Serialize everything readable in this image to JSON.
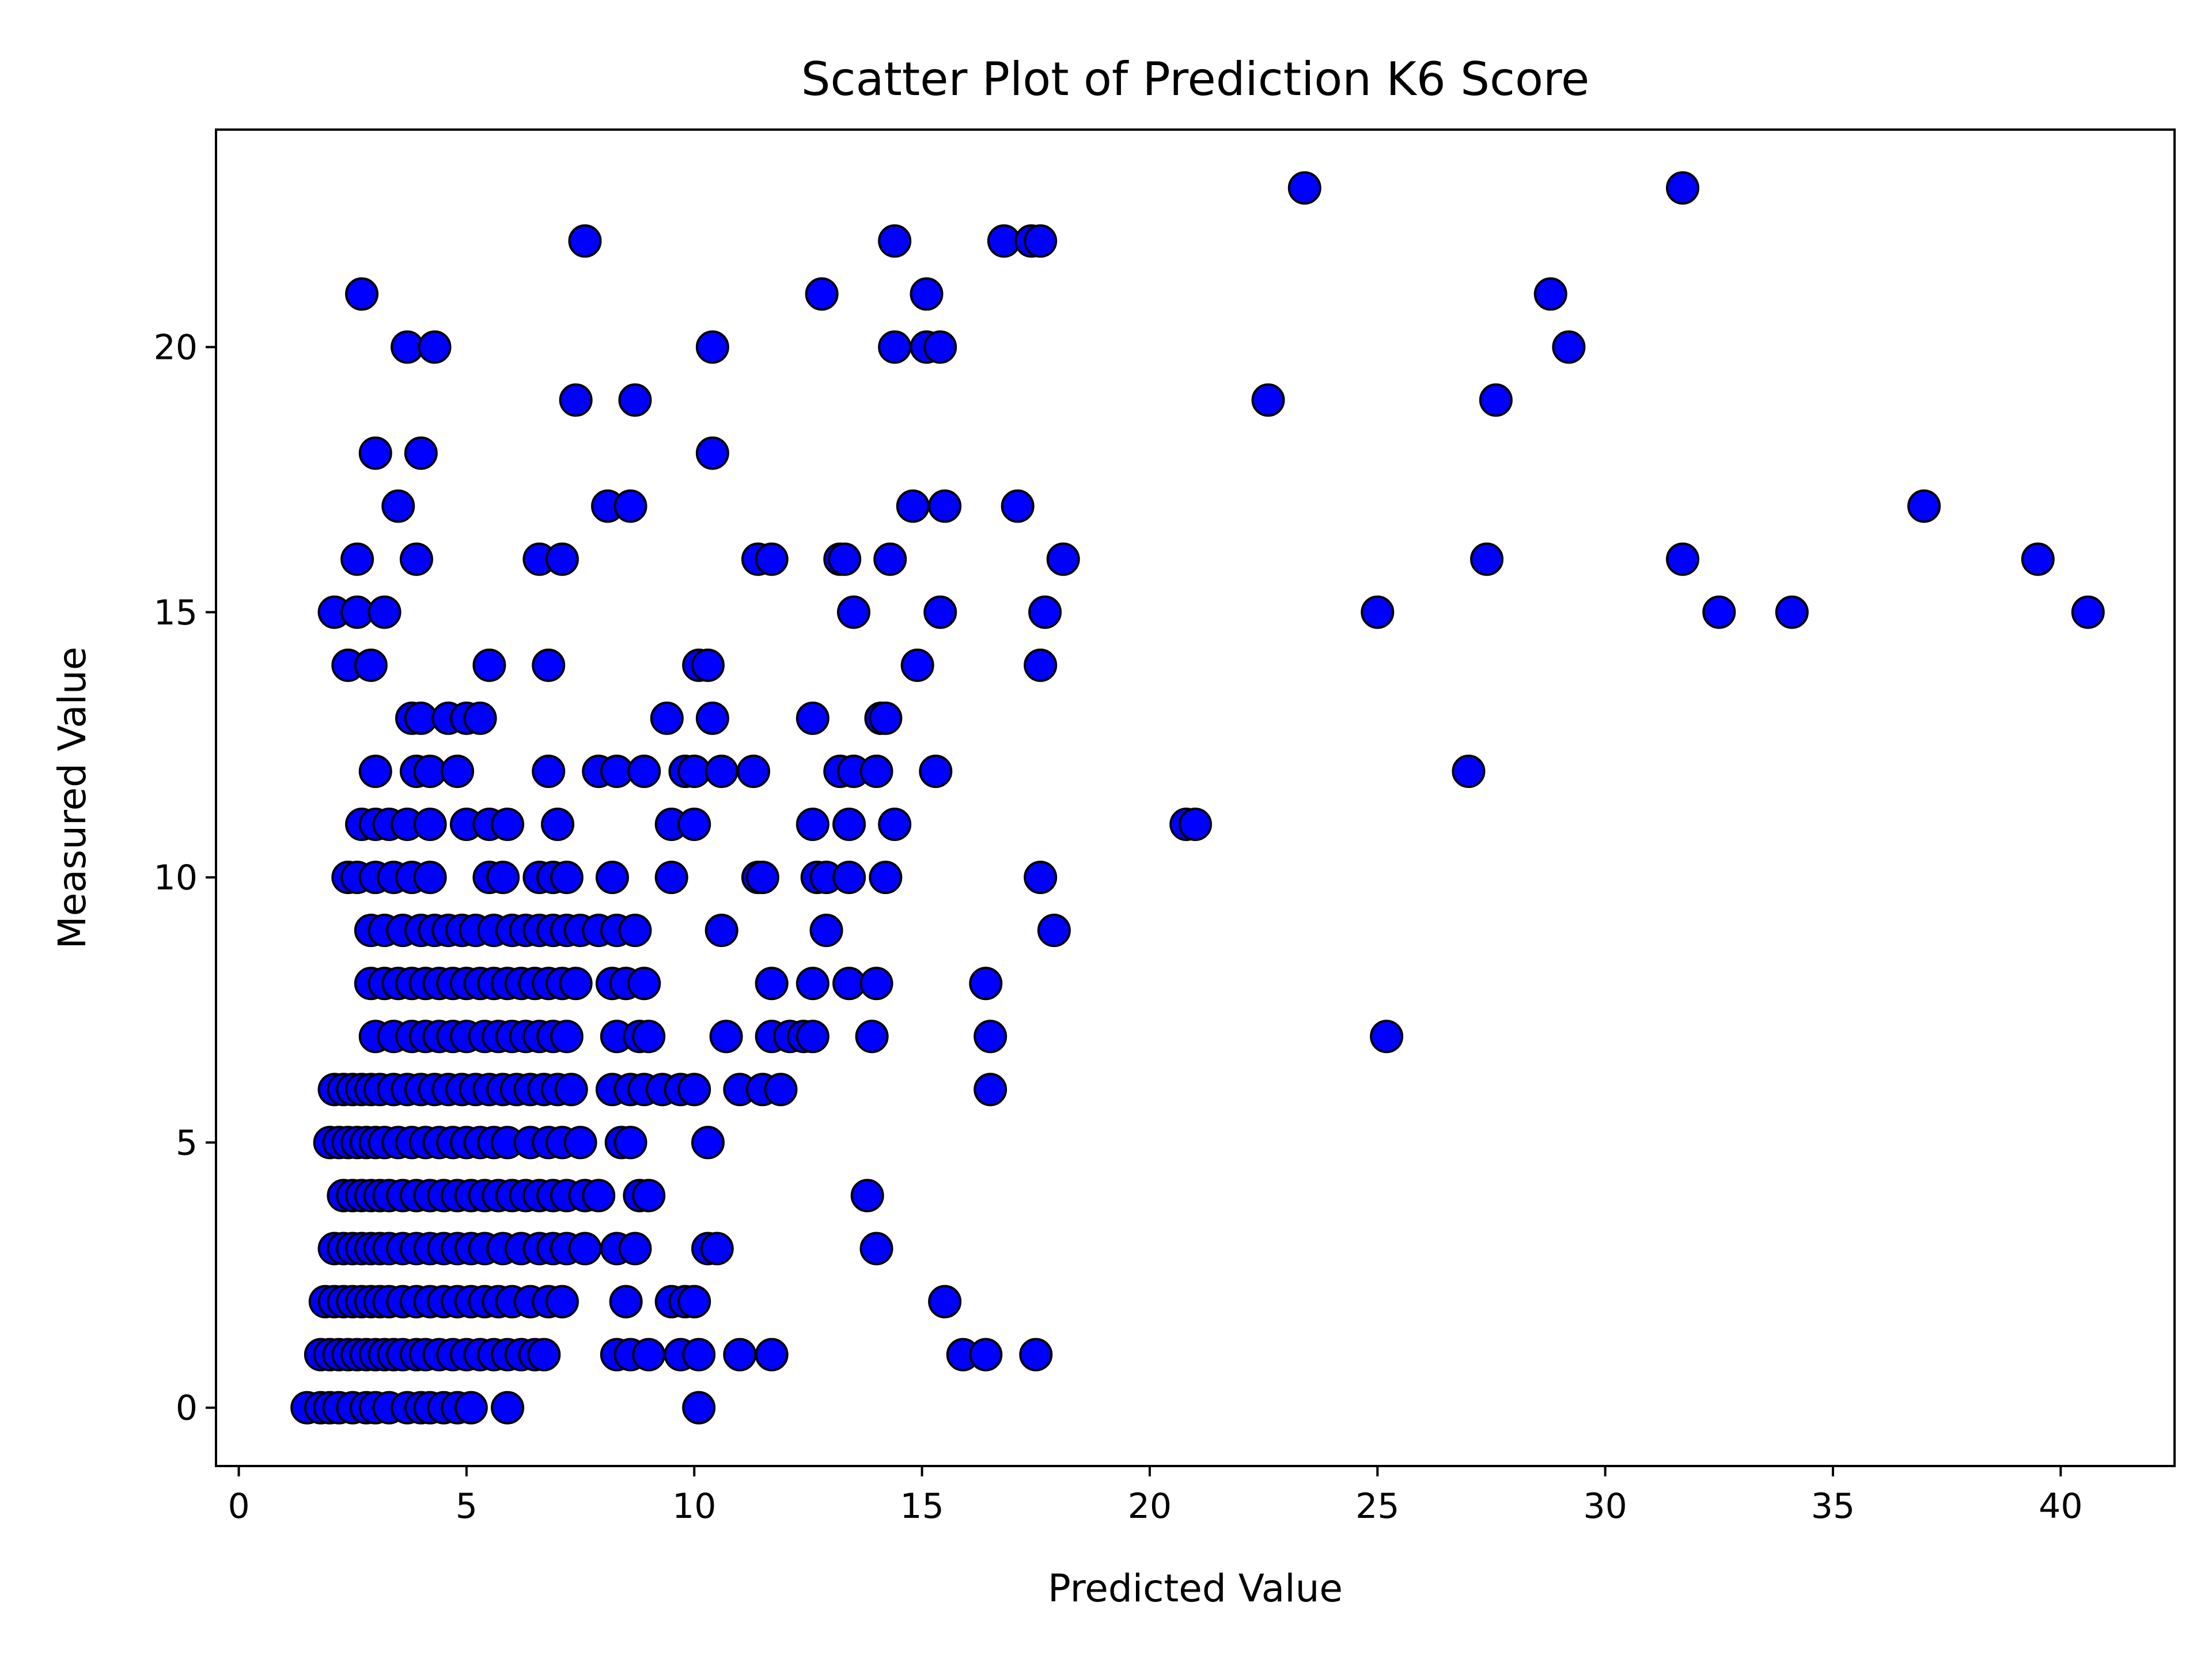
{
  "chart_data": {
    "type": "scatter",
    "title": "Scatter Plot of Prediction K6 Score",
    "xlabel": "Predicted Value",
    "ylabel": "Measured Value",
    "xlim": [
      -0.5,
      42.5
    ],
    "ylim": [
      -1.1,
      24.1
    ],
    "xticks": [
      0,
      5,
      10,
      15,
      20,
      25,
      30,
      35,
      40
    ],
    "yticks": [
      0,
      5,
      10,
      15,
      20
    ],
    "grid": false,
    "marker_color": "#0000ff",
    "marker_edge_color": "#000000",
    "points": [
      [
        1.5,
        0
      ],
      [
        1.8,
        0
      ],
      [
        2.0,
        0
      ],
      [
        2.2,
        0
      ],
      [
        2.5,
        0
      ],
      [
        2.8,
        0
      ],
      [
        3.0,
        0
      ],
      [
        3.3,
        0
      ],
      [
        3.7,
        0
      ],
      [
        4.0,
        0
      ],
      [
        4.2,
        0
      ],
      [
        4.5,
        0
      ],
      [
        4.8,
        0
      ],
      [
        5.1,
        0
      ],
      [
        5.9,
        0
      ],
      [
        10.1,
        0
      ],
      [
        1.8,
        1
      ],
      [
        2.0,
        1
      ],
      [
        2.2,
        1
      ],
      [
        2.4,
        1
      ],
      [
        2.6,
        1
      ],
      [
        2.8,
        1
      ],
      [
        3.0,
        1
      ],
      [
        3.2,
        1
      ],
      [
        3.4,
        1
      ],
      [
        3.6,
        1
      ],
      [
        3.9,
        1
      ],
      [
        4.1,
        1
      ],
      [
        4.4,
        1
      ],
      [
        4.7,
        1
      ],
      [
        5.0,
        1
      ],
      [
        5.3,
        1
      ],
      [
        5.6,
        1
      ],
      [
        5.9,
        1
      ],
      [
        6.2,
        1
      ],
      [
        6.5,
        1
      ],
      [
        6.7,
        1
      ],
      [
        8.3,
        1
      ],
      [
        8.6,
        1
      ],
      [
        9.0,
        1
      ],
      [
        9.7,
        1
      ],
      [
        10.1,
        1
      ],
      [
        11.0,
        1
      ],
      [
        11.7,
        1
      ],
      [
        15.9,
        1
      ],
      [
        16.4,
        1
      ],
      [
        17.5,
        1
      ],
      [
        1.9,
        2
      ],
      [
        2.1,
        2
      ],
      [
        2.3,
        2
      ],
      [
        2.5,
        2
      ],
      [
        2.7,
        2
      ],
      [
        2.9,
        2
      ],
      [
        3.1,
        2
      ],
      [
        3.3,
        2
      ],
      [
        3.6,
        2
      ],
      [
        3.9,
        2
      ],
      [
        4.2,
        2
      ],
      [
        4.5,
        2
      ],
      [
        4.8,
        2
      ],
      [
        5.1,
        2
      ],
      [
        5.4,
        2
      ],
      [
        5.7,
        2
      ],
      [
        6.0,
        2
      ],
      [
        6.4,
        2
      ],
      [
        6.8,
        2
      ],
      [
        7.1,
        2
      ],
      [
        8.5,
        2
      ],
      [
        9.5,
        2
      ],
      [
        9.8,
        2
      ],
      [
        10.0,
        2
      ],
      [
        15.5,
        2
      ],
      [
        2.1,
        3
      ],
      [
        2.3,
        3
      ],
      [
        2.5,
        3
      ],
      [
        2.7,
        3
      ],
      [
        2.9,
        3
      ],
      [
        3.1,
        3
      ],
      [
        3.3,
        3
      ],
      [
        3.6,
        3
      ],
      [
        3.9,
        3
      ],
      [
        4.2,
        3
      ],
      [
        4.5,
        3
      ],
      [
        4.8,
        3
      ],
      [
        5.1,
        3
      ],
      [
        5.4,
        3
      ],
      [
        5.8,
        3
      ],
      [
        6.2,
        3
      ],
      [
        6.6,
        3
      ],
      [
        6.9,
        3
      ],
      [
        7.2,
        3
      ],
      [
        7.6,
        3
      ],
      [
        8.3,
        3
      ],
      [
        8.7,
        3
      ],
      [
        10.3,
        3
      ],
      [
        10.5,
        3
      ],
      [
        14.0,
        3
      ],
      [
        2.3,
        4
      ],
      [
        2.5,
        4
      ],
      [
        2.7,
        4
      ],
      [
        2.9,
        4
      ],
      [
        3.1,
        4
      ],
      [
        3.3,
        4
      ],
      [
        3.6,
        4
      ],
      [
        3.9,
        4
      ],
      [
        4.2,
        4
      ],
      [
        4.5,
        4
      ],
      [
        4.8,
        4
      ],
      [
        5.1,
        4
      ],
      [
        5.4,
        4
      ],
      [
        5.7,
        4
      ],
      [
        6.0,
        4
      ],
      [
        6.3,
        4
      ],
      [
        6.6,
        4
      ],
      [
        6.9,
        4
      ],
      [
        7.2,
        4
      ],
      [
        7.6,
        4
      ],
      [
        7.9,
        4
      ],
      [
        8.8,
        4
      ],
      [
        9.0,
        4
      ],
      [
        13.8,
        4
      ],
      [
        2.0,
        5
      ],
      [
        2.2,
        5
      ],
      [
        2.4,
        5
      ],
      [
        2.6,
        5
      ],
      [
        2.8,
        5
      ],
      [
        3.0,
        5
      ],
      [
        3.2,
        5
      ],
      [
        3.5,
        5
      ],
      [
        3.8,
        5
      ],
      [
        4.1,
        5
      ],
      [
        4.4,
        5
      ],
      [
        4.7,
        5
      ],
      [
        5.0,
        5
      ],
      [
        5.3,
        5
      ],
      [
        5.6,
        5
      ],
      [
        5.9,
        5
      ],
      [
        6.4,
        5
      ],
      [
        6.8,
        5
      ],
      [
        7.1,
        5
      ],
      [
        7.5,
        5
      ],
      [
        8.4,
        5
      ],
      [
        8.6,
        5
      ],
      [
        10.3,
        5
      ],
      [
        2.1,
        6
      ],
      [
        2.3,
        6
      ],
      [
        2.5,
        6
      ],
      [
        2.7,
        6
      ],
      [
        2.9,
        6
      ],
      [
        3.1,
        6
      ],
      [
        3.4,
        6
      ],
      [
        3.7,
        6
      ],
      [
        4.0,
        6
      ],
      [
        4.3,
        6
      ],
      [
        4.6,
        6
      ],
      [
        4.9,
        6
      ],
      [
        5.2,
        6
      ],
      [
        5.5,
        6
      ],
      [
        5.8,
        6
      ],
      [
        6.1,
        6
      ],
      [
        6.4,
        6
      ],
      [
        6.7,
        6
      ],
      [
        7.0,
        6
      ],
      [
        7.3,
        6
      ],
      [
        8.2,
        6
      ],
      [
        8.6,
        6
      ],
      [
        8.9,
        6
      ],
      [
        9.3,
        6
      ],
      [
        9.7,
        6
      ],
      [
        10.0,
        6
      ],
      [
        11.0,
        6
      ],
      [
        11.5,
        6
      ],
      [
        11.9,
        6
      ],
      [
        16.5,
        6
      ],
      [
        3.0,
        7
      ],
      [
        3.4,
        7
      ],
      [
        3.8,
        7
      ],
      [
        4.1,
        7
      ],
      [
        4.4,
        7
      ],
      [
        4.7,
        7
      ],
      [
        5.0,
        7
      ],
      [
        5.4,
        7
      ],
      [
        5.7,
        7
      ],
      [
        6.0,
        7
      ],
      [
        6.3,
        7
      ],
      [
        6.6,
        7
      ],
      [
        6.9,
        7
      ],
      [
        7.2,
        7
      ],
      [
        8.3,
        7
      ],
      [
        8.8,
        7
      ],
      [
        9.0,
        7
      ],
      [
        10.7,
        7
      ],
      [
        11.7,
        7
      ],
      [
        12.1,
        7
      ],
      [
        12.4,
        7
      ],
      [
        12.6,
        7
      ],
      [
        13.9,
        7
      ],
      [
        16.5,
        7
      ],
      [
        25.2,
        7
      ],
      [
        2.9,
        8
      ],
      [
        3.2,
        8
      ],
      [
        3.5,
        8
      ],
      [
        3.8,
        8
      ],
      [
        4.1,
        8
      ],
      [
        4.4,
        8
      ],
      [
        4.7,
        8
      ],
      [
        5.0,
        8
      ],
      [
        5.3,
        8
      ],
      [
        5.6,
        8
      ],
      [
        5.9,
        8
      ],
      [
        6.2,
        8
      ],
      [
        6.5,
        8
      ],
      [
        6.8,
        8
      ],
      [
        7.1,
        8
      ],
      [
        7.4,
        8
      ],
      [
        8.2,
        8
      ],
      [
        8.5,
        8
      ],
      [
        8.9,
        8
      ],
      [
        11.7,
        8
      ],
      [
        12.6,
        8
      ],
      [
        13.4,
        8
      ],
      [
        14.0,
        8
      ],
      [
        16.4,
        8
      ],
      [
        2.9,
        9
      ],
      [
        3.2,
        9
      ],
      [
        3.6,
        9
      ],
      [
        4.0,
        9
      ],
      [
        4.3,
        9
      ],
      [
        4.6,
        9
      ],
      [
        4.9,
        9
      ],
      [
        5.2,
        9
      ],
      [
        5.6,
        9
      ],
      [
        6.0,
        9
      ],
      [
        6.3,
        9
      ],
      [
        6.6,
        9
      ],
      [
        6.9,
        9
      ],
      [
        7.2,
        9
      ],
      [
        7.5,
        9
      ],
      [
        7.9,
        9
      ],
      [
        8.3,
        9
      ],
      [
        8.7,
        9
      ],
      [
        10.6,
        9
      ],
      [
        12.9,
        9
      ],
      [
        17.9,
        9
      ],
      [
        2.4,
        10
      ],
      [
        2.6,
        10
      ],
      [
        3.0,
        10
      ],
      [
        3.4,
        10
      ],
      [
        3.8,
        10
      ],
      [
        4.2,
        10
      ],
      [
        5.5,
        10
      ],
      [
        5.8,
        10
      ],
      [
        6.6,
        10
      ],
      [
        6.9,
        10
      ],
      [
        7.2,
        10
      ],
      [
        8.2,
        10
      ],
      [
        9.5,
        10
      ],
      [
        11.4,
        10
      ],
      [
        11.5,
        10
      ],
      [
        12.7,
        10
      ],
      [
        12.9,
        10
      ],
      [
        13.4,
        10
      ],
      [
        14.2,
        10
      ],
      [
        17.6,
        10
      ],
      [
        2.7,
        11
      ],
      [
        3.0,
        11
      ],
      [
        3.3,
        11
      ],
      [
        3.7,
        11
      ],
      [
        4.2,
        11
      ],
      [
        5.0,
        11
      ],
      [
        5.5,
        11
      ],
      [
        5.9,
        11
      ],
      [
        7.0,
        11
      ],
      [
        9.5,
        11
      ],
      [
        10.0,
        11
      ],
      [
        12.6,
        11
      ],
      [
        13.4,
        11
      ],
      [
        14.4,
        11
      ],
      [
        20.8,
        11
      ],
      [
        21.0,
        11
      ],
      [
        3.0,
        12
      ],
      [
        3.9,
        12
      ],
      [
        4.2,
        12
      ],
      [
        4.8,
        12
      ],
      [
        6.8,
        12
      ],
      [
        7.9,
        12
      ],
      [
        8.3,
        12
      ],
      [
        8.9,
        12
      ],
      [
        9.8,
        12
      ],
      [
        10.0,
        12
      ],
      [
        10.6,
        12
      ],
      [
        11.3,
        12
      ],
      [
        13.2,
        12
      ],
      [
        13.5,
        12
      ],
      [
        14.0,
        12
      ],
      [
        15.3,
        12
      ],
      [
        27.0,
        12
      ],
      [
        3.8,
        13
      ],
      [
        4.0,
        13
      ],
      [
        4.6,
        13
      ],
      [
        5.0,
        13
      ],
      [
        5.3,
        13
      ],
      [
        9.4,
        13
      ],
      [
        10.4,
        13
      ],
      [
        12.6,
        13
      ],
      [
        14.1,
        13
      ],
      [
        14.2,
        13
      ],
      [
        2.4,
        14
      ],
      [
        2.9,
        14
      ],
      [
        5.5,
        14
      ],
      [
        6.8,
        14
      ],
      [
        10.1,
        14
      ],
      [
        10.3,
        14
      ],
      [
        14.9,
        14
      ],
      [
        17.6,
        14
      ],
      [
        2.1,
        15
      ],
      [
        2.6,
        15
      ],
      [
        3.2,
        15
      ],
      [
        13.5,
        15
      ],
      [
        15.4,
        15
      ],
      [
        17.7,
        15
      ],
      [
        25.0,
        15
      ],
      [
        32.5,
        15
      ],
      [
        34.1,
        15
      ],
      [
        40.6,
        15
      ],
      [
        2.6,
        16
      ],
      [
        3.9,
        16
      ],
      [
        6.6,
        16
      ],
      [
        7.1,
        16
      ],
      [
        11.4,
        16
      ],
      [
        11.7,
        16
      ],
      [
        13.2,
        16
      ],
      [
        13.3,
        16
      ],
      [
        14.3,
        16
      ],
      [
        18.1,
        16
      ],
      [
        27.4,
        16
      ],
      [
        31.7,
        16
      ],
      [
        39.5,
        16
      ],
      [
        3.5,
        17
      ],
      [
        8.1,
        17
      ],
      [
        8.6,
        17
      ],
      [
        14.8,
        17
      ],
      [
        15.5,
        17
      ],
      [
        17.1,
        17
      ],
      [
        37.0,
        17
      ],
      [
        3.0,
        18
      ],
      [
        4.0,
        18
      ],
      [
        10.4,
        18
      ],
      [
        7.4,
        19
      ],
      [
        8.7,
        19
      ],
      [
        22.6,
        19
      ],
      [
        27.6,
        19
      ],
      [
        3.7,
        20
      ],
      [
        4.3,
        20
      ],
      [
        10.4,
        20
      ],
      [
        14.4,
        20
      ],
      [
        15.1,
        20
      ],
      [
        15.4,
        20
      ],
      [
        29.2,
        20
      ],
      [
        2.7,
        21
      ],
      [
        12.8,
        21
      ],
      [
        15.1,
        21
      ],
      [
        28.8,
        21
      ],
      [
        7.6,
        22
      ],
      [
        14.4,
        22
      ],
      [
        16.8,
        22
      ],
      [
        17.4,
        22
      ],
      [
        17.6,
        22
      ],
      [
        23.4,
        23
      ],
      [
        31.7,
        23
      ]
    ]
  }
}
